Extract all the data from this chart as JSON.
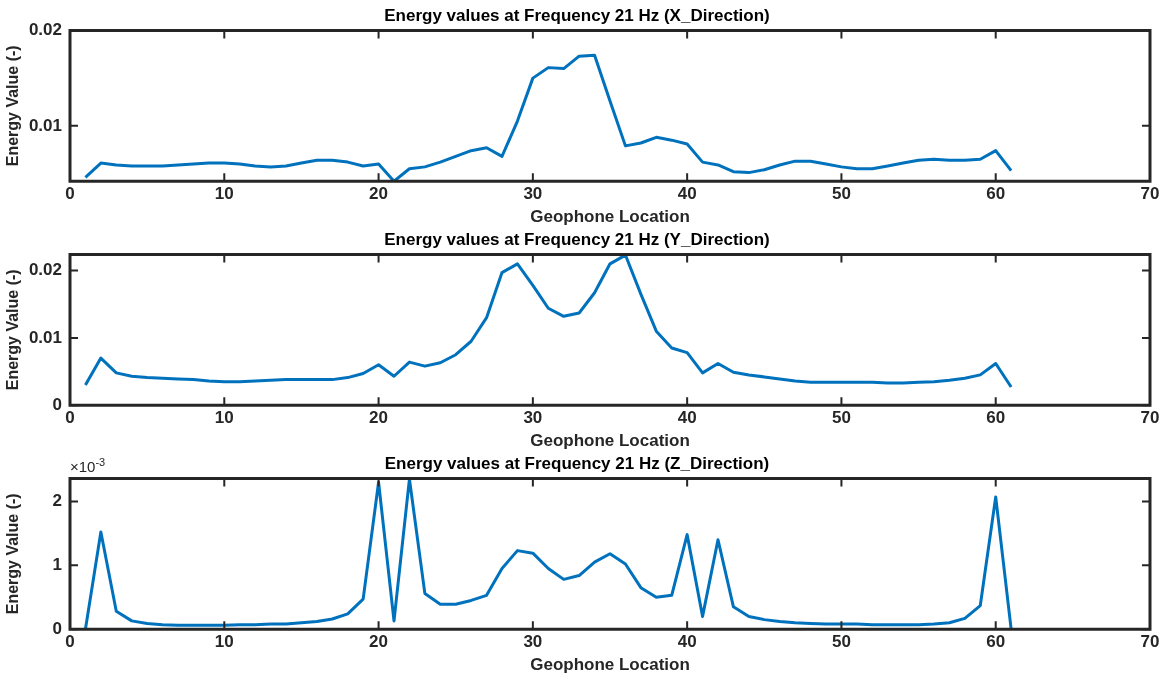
{
  "chart_data": [
    {
      "type": "line",
      "title": "Energy values at Frequency 21 Hz (X_Direction)",
      "xlabel": "Geophone Location",
      "ylabel": "Energy Value (-)",
      "x": [
        1,
        2,
        3,
        4,
        5,
        6,
        7,
        8,
        9,
        10,
        11,
        12,
        13,
        14,
        15,
        16,
        17,
        18,
        19,
        20,
        21,
        22,
        23,
        24,
        25,
        26,
        27,
        28,
        29,
        30,
        31,
        32,
        33,
        34,
        35,
        36,
        37,
        38,
        39,
        40,
        41,
        42,
        43,
        44,
        45,
        46,
        47,
        48,
        49,
        50,
        51,
        52,
        53,
        54,
        55,
        56,
        57,
        58,
        59,
        60,
        61
      ],
      "series": [
        {
          "color": "#0072bd",
          "values": [
            0.0046,
            0.0061,
            0.0059,
            0.0058,
            0.0058,
            0.0058,
            0.0059,
            0.006,
            0.0061,
            0.0061,
            0.006,
            0.0058,
            0.0057,
            0.0058,
            0.0061,
            0.0064,
            0.0064,
            0.0062,
            0.0058,
            0.006,
            0.0042,
            0.0055,
            0.0057,
            0.0062,
            0.0068,
            0.0074,
            0.0077,
            0.0068,
            0.0105,
            0.015,
            0.0161,
            0.016,
            0.0173,
            0.0174,
            0.0126,
            0.0079,
            0.0082,
            0.0088,
            0.0085,
            0.0081,
            0.0062,
            0.0059,
            0.0052,
            0.0051,
            0.0054,
            0.0059,
            0.0063,
            0.0063,
            0.006,
            0.0057,
            0.0055,
            0.0055,
            0.0058,
            0.0061,
            0.0064,
            0.0065,
            0.0064,
            0.0064,
            0.0065,
            0.0074,
            0.0053
          ]
        }
      ],
      "xlim": [
        0,
        70
      ],
      "xticks": [
        0,
        10,
        20,
        30,
        40,
        50,
        60,
        70
      ],
      "ylim": [
        0.0042,
        0.02
      ],
      "yticks": [
        0.01,
        0.02
      ],
      "grid": false,
      "legend": false,
      "marker": "none",
      "line_style": "solid"
    },
    {
      "type": "line",
      "title": "Energy values at Frequency 21 Hz (Y_Direction)",
      "xlabel": "Geophone Location",
      "ylabel": "Energy Value (-)",
      "x": [
        1,
        2,
        3,
        4,
        5,
        6,
        7,
        8,
        9,
        10,
        11,
        12,
        13,
        14,
        15,
        16,
        17,
        18,
        19,
        20,
        21,
        22,
        23,
        24,
        25,
        26,
        27,
        28,
        29,
        30,
        31,
        32,
        33,
        34,
        35,
        36,
        37,
        38,
        39,
        40,
        41,
        42,
        43,
        44,
        45,
        46,
        47,
        48,
        49,
        50,
        51,
        52,
        53,
        54,
        55,
        56,
        57,
        58,
        59,
        60,
        61
      ],
      "series": [
        {
          "color": "#0072bd",
          "values": [
            0.003,
            0.007,
            0.0048,
            0.0043,
            0.0041,
            0.004,
            0.0039,
            0.0038,
            0.0036,
            0.0035,
            0.0035,
            0.0036,
            0.0037,
            0.0038,
            0.0038,
            0.0038,
            0.0038,
            0.0041,
            0.0047,
            0.006,
            0.0043,
            0.0064,
            0.0058,
            0.0063,
            0.0075,
            0.0095,
            0.013,
            0.0197,
            0.021,
            0.0178,
            0.0144,
            0.0132,
            0.0137,
            0.0167,
            0.021,
            0.0223,
            0.0165,
            0.011,
            0.0085,
            0.0078,
            0.0048,
            0.0062,
            0.0049,
            0.0045,
            0.0042,
            0.0039,
            0.0036,
            0.0034,
            0.0034,
            0.0034,
            0.0034,
            0.0034,
            0.0033,
            0.0033,
            0.0034,
            0.0035,
            0.0037,
            0.004,
            0.0045,
            0.0062,
            0.0027
          ]
        }
      ],
      "xlim": [
        0,
        70
      ],
      "xticks": [
        0,
        10,
        20,
        30,
        40,
        50,
        60,
        70
      ],
      "ylim": [
        0,
        0.0224
      ],
      "yticks": [
        0,
        0.01,
        0.02
      ],
      "grid": false,
      "legend": false,
      "marker": "none",
      "line_style": "solid"
    },
    {
      "type": "line",
      "title": "Energy values at Frequency 21 Hz (Z_Direction)",
      "xlabel": "Geophone Location",
      "ylabel": "Energy Value (-)",
      "annotations": [
        "×10$^{-3}$"
      ],
      "x": [
        1,
        2,
        3,
        4,
        5,
        6,
        7,
        8,
        9,
        10,
        11,
        12,
        13,
        14,
        15,
        16,
        17,
        18,
        19,
        20,
        21,
        22,
        23,
        24,
        25,
        26,
        27,
        28,
        29,
        30,
        31,
        32,
        33,
        34,
        35,
        36,
        37,
        38,
        39,
        40,
        41,
        42,
        43,
        44,
        45,
        46,
        47,
        48,
        49,
        50,
        51,
        52,
        53,
        54,
        55,
        56,
        57,
        58,
        59,
        60,
        61
      ],
      "series": [
        {
          "color": "#0072bd",
          "values": [
            0,
            1.52,
            0.28,
            0.13,
            0.09,
            0.07,
            0.06,
            0.06,
            0.06,
            0.06,
            0.07,
            0.07,
            0.08,
            0.08,
            0.1,
            0.12,
            0.16,
            0.24,
            0.47,
            2.3,
            0.13,
            2.35,
            0.56,
            0.39,
            0.39,
            0.45,
            0.53,
            0.95,
            1.23,
            1.19,
            0.95,
            0.78,
            0.84,
            1.05,
            1.18,
            1.02,
            0.65,
            0.5,
            0.53,
            1.48,
            0.2,
            1.4,
            0.35,
            0.2,
            0.15,
            0.12,
            0.1,
            0.09,
            0.08,
            0.08,
            0.08,
            0.07,
            0.07,
            0.07,
            0.07,
            0.08,
            0.1,
            0.17,
            0.37,
            2.07,
            0
          ]
        }
      ],
      "xlim": [
        0,
        70
      ],
      "xticks": [
        0,
        10,
        20,
        30,
        40,
        50,
        60,
        70
      ],
      "ylim": [
        0,
        2.36
      ],
      "yticks": [
        0,
        1,
        2
      ],
      "grid": false,
      "legend": false,
      "marker": "none",
      "line_style": "solid"
    }
  ]
}
